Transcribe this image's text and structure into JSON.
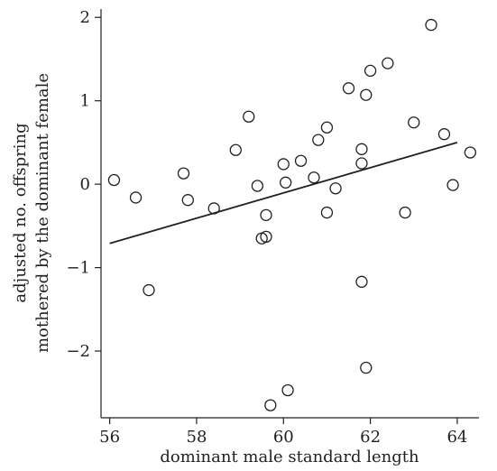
{
  "chart_data": {
    "type": "scatter",
    "xlabel": "dominant male standard length",
    "ylabel_lines": [
      "adjusted no. offspring",
      "mothered by the dominant female"
    ],
    "xlim": [
      55.8,
      64.5
    ],
    "ylim": [
      -2.8,
      2.1
    ],
    "xticks": [
      56,
      58,
      60,
      62,
      64
    ],
    "yticks": [
      -2,
      -1,
      0,
      1,
      2
    ],
    "ytick_labels": [
      "−2",
      "−1",
      "0",
      "1",
      "2"
    ],
    "grid": false,
    "marker": "open-circle",
    "points": [
      {
        "x": 56.1,
        "y": 0.05
      },
      {
        "x": 56.6,
        "y": -0.16
      },
      {
        "x": 56.9,
        "y": -1.27
      },
      {
        "x": 57.7,
        "y": 0.13
      },
      {
        "x": 57.8,
        "y": -0.19
      },
      {
        "x": 58.4,
        "y": -0.29
      },
      {
        "x": 58.9,
        "y": 0.41
      },
      {
        "x": 59.2,
        "y": 0.81
      },
      {
        "x": 59.4,
        "y": -0.02
      },
      {
        "x": 59.5,
        "y": -0.65
      },
      {
        "x": 59.6,
        "y": -0.37
      },
      {
        "x": 59.6,
        "y": -0.63
      },
      {
        "x": 59.7,
        "y": -2.65
      },
      {
        "x": 60.0,
        "y": 0.24
      },
      {
        "x": 60.05,
        "y": 0.02
      },
      {
        "x": 60.1,
        "y": -2.47
      },
      {
        "x": 60.4,
        "y": 0.28
      },
      {
        "x": 60.7,
        "y": 0.08
      },
      {
        "x": 60.8,
        "y": 0.53
      },
      {
        "x": 61.0,
        "y": 0.68
      },
      {
        "x": 61.0,
        "y": -0.34
      },
      {
        "x": 61.2,
        "y": -0.05
      },
      {
        "x": 61.5,
        "y": 1.15
      },
      {
        "x": 61.8,
        "y": 0.42
      },
      {
        "x": 61.8,
        "y": 0.25
      },
      {
        "x": 61.8,
        "y": -1.17
      },
      {
        "x": 61.9,
        "y": 1.07
      },
      {
        "x": 61.9,
        "y": -2.2
      },
      {
        "x": 62.0,
        "y": 1.36
      },
      {
        "x": 62.4,
        "y": 1.45
      },
      {
        "x": 62.8,
        "y": -0.34
      },
      {
        "x": 63.0,
        "y": 0.74
      },
      {
        "x": 63.4,
        "y": 1.91
      },
      {
        "x": 63.7,
        "y": 0.6
      },
      {
        "x": 63.9,
        "y": -0.01
      },
      {
        "x": 64.3,
        "y": 0.38
      }
    ],
    "fit_line": {
      "x": [
        56.0,
        64.0
      ],
      "y": [
        -0.71,
        0.5
      ]
    }
  }
}
